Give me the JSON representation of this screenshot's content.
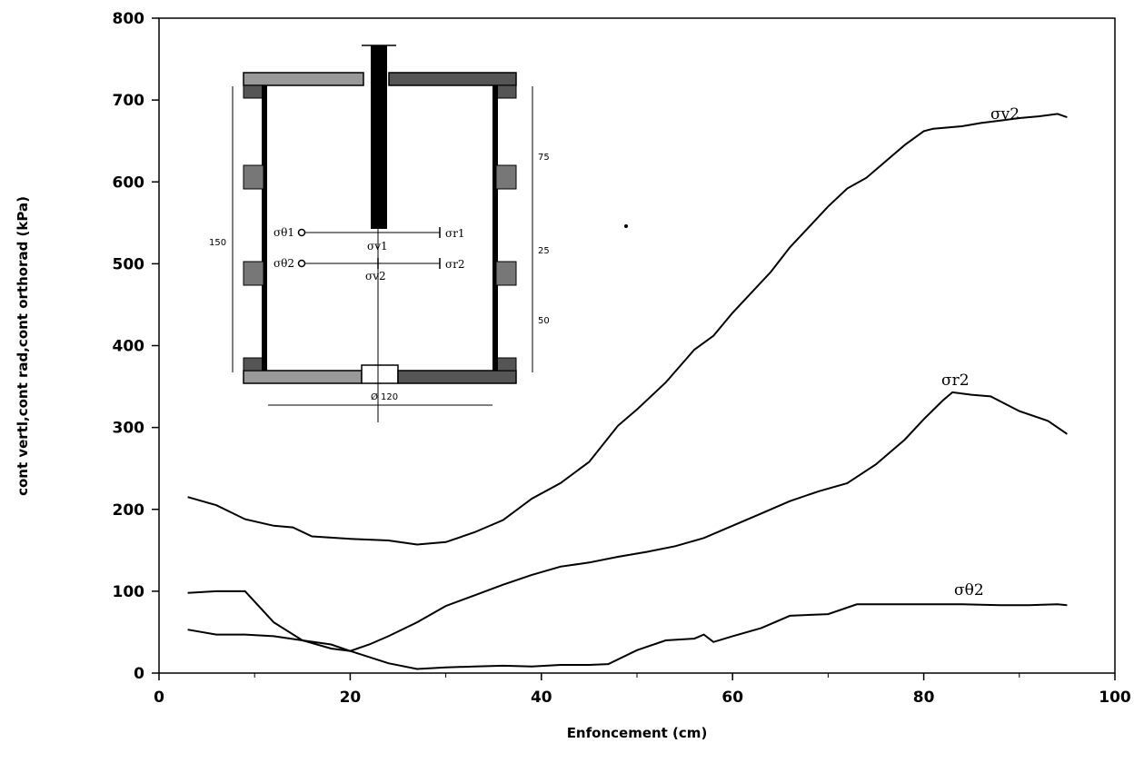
{
  "chart_data": {
    "type": "line",
    "title": "",
    "xlabel": "Enfoncement (cm)",
    "ylabel": "cont vertl,cont rad,cont orthorad (kPa)",
    "xlim": [
      0,
      100
    ],
    "ylim": [
      0,
      800
    ],
    "x_ticks": [
      0,
      20,
      40,
      60,
      80,
      100
    ],
    "y_ticks": [
      0,
      100,
      200,
      300,
      400,
      500,
      600,
      700,
      800
    ],
    "grid": false,
    "series": [
      {
        "name": "σv2",
        "x": [
          3,
          6,
          9,
          12,
          14,
          16,
          20,
          24,
          27,
          30,
          33,
          36,
          39,
          42,
          45,
          48,
          50,
          53,
          56,
          58,
          60,
          62,
          64,
          66,
          68,
          70,
          72,
          74,
          76,
          78,
          80,
          81,
          84,
          86,
          88,
          90,
          92,
          94,
          95
        ],
        "y": [
          215,
          205,
          188,
          180,
          178,
          167,
          164,
          162,
          157,
          160,
          172,
          187,
          213,
          232,
          258,
          302,
          322,
          355,
          395,
          412,
          440,
          465,
          490,
          520,
          545,
          570,
          592,
          605,
          625,
          645,
          662,
          665,
          668,
          672,
          675,
          678,
          680,
          683,
          679
        ]
      },
      {
        "name": "σr2",
        "x": [
          3,
          6,
          9,
          12,
          15,
          18,
          20,
          22,
          24,
          27,
          30,
          33,
          36,
          39,
          42,
          45,
          48,
          51,
          54,
          57,
          60,
          63,
          66,
          69,
          72,
          75,
          78,
          80,
          82,
          83,
          85,
          87,
          90,
          93,
          95
        ],
        "y": [
          98,
          100,
          100,
          62,
          40,
          30,
          27,
          35,
          45,
          62,
          82,
          95,
          108,
          120,
          130,
          135,
          142,
          148,
          155,
          165,
          180,
          195,
          210,
          222,
          232,
          255,
          285,
          310,
          333,
          343,
          340,
          338,
          320,
          308,
          292
        ]
      },
      {
        "name": "σθ2",
        "x": [
          3,
          6,
          9,
          12,
          15,
          18,
          20,
          24,
          27,
          30,
          33,
          36,
          39,
          42,
          45,
          47,
          50,
          53,
          56,
          57,
          58,
          60,
          63,
          66,
          70,
          73,
          76,
          80,
          84,
          88,
          91,
          94,
          95
        ],
        "y": [
          53,
          47,
          47,
          45,
          40,
          35,
          27,
          12,
          5,
          7,
          8,
          9,
          8,
          10,
          10,
          11,
          28,
          40,
          42,
          47,
          38,
          45,
          55,
          70,
          72,
          84,
          84,
          84,
          84,
          83,
          83,
          84,
          83
        ]
      }
    ],
    "series_labels": [
      "σv2",
      "σr2",
      "σθ2"
    ],
    "inset": {
      "labels": [
        "σθ1",
        "σr1",
        "σv1",
        "σθ2",
        "σr2",
        "σv2"
      ],
      "dimensions": [
        "150",
        "75",
        "25",
        "50",
        "Ø 120"
      ]
    }
  }
}
